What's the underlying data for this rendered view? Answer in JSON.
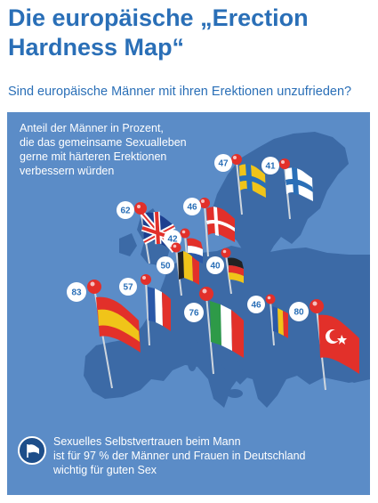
{
  "title": {
    "line1": "Die europäische „Erection",
    "line2": "Hardness Map“"
  },
  "subtitle": "Sind europäische Männer mit ihren Erektionen unzufrieden?",
  "legend": [
    "Anteil der Männer in Prozent,",
    "die das gemeinsame Sexualleben",
    "gerne mit härteren Erektionen",
    "verbessern würden"
  ],
  "footer": {
    "icon": "flag-icon",
    "lines": [
      "Sexuelles Selbstvertrauen beim Mann",
      "ist für 97 % der Männer und Frauen in Deutschland",
      "wichtig für guten Sex"
    ]
  },
  "colors": {
    "brand_blue": "#2a6fb7",
    "sea": "#5b8cc7",
    "land": "#3c6aa6",
    "pin_head": "#e2302a"
  },
  "markers": [
    {
      "country": "Schweden",
      "flag": "flag-sweden",
      "value": "47"
    },
    {
      "country": "Finnland",
      "flag": "flag-finland",
      "value": "41"
    },
    {
      "country": "Großbritannien",
      "flag": "flag-uk",
      "value": "62"
    },
    {
      "country": "Dänemark",
      "flag": "flag-denmark",
      "value": "46"
    },
    {
      "country": "Niederlande",
      "flag": "flag-netherlands",
      "value": "42"
    },
    {
      "country": "Belgien",
      "flag": "flag-belgium",
      "value": "50"
    },
    {
      "country": "Deutschland",
      "flag": "flag-germany",
      "value": "40"
    },
    {
      "country": "Frankreich",
      "flag": "flag-france",
      "value": "57"
    },
    {
      "country": "Spanien",
      "flag": "flag-spain",
      "value": "83"
    },
    {
      "country": "Italien",
      "flag": "flag-italy",
      "value": "76"
    },
    {
      "country": "Rumänien",
      "flag": "flag-romania",
      "value": "46"
    },
    {
      "country": "Türkei",
      "flag": "flag-turkey",
      "value": "80"
    }
  ]
}
